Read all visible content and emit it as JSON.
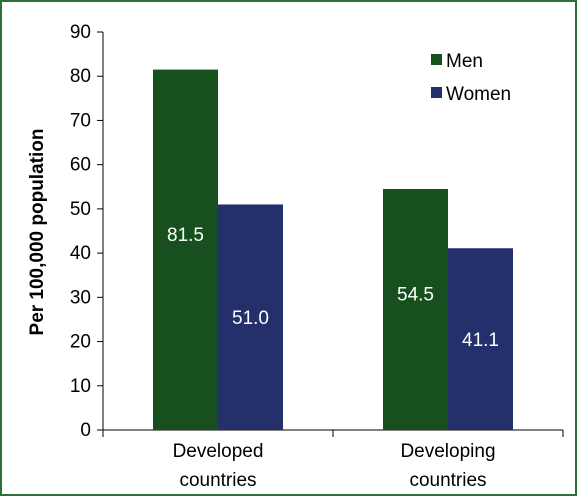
{
  "chart_data": {
    "type": "bar",
    "categories": [
      [
        "Developed",
        "countries"
      ],
      [
        "Developing",
        "countries"
      ]
    ],
    "series": [
      {
        "name": "Men",
        "values": [
          81.5,
          54.5
        ],
        "labels": [
          "81.5",
          "54.5"
        ],
        "color": "#174f1f"
      },
      {
        "name": "Women",
        "values": [
          51.0,
          41.1
        ],
        "labels": [
          "51.0",
          "41.1"
        ],
        "color": "#24306b"
      }
    ],
    "ylabel": "Per 100,000 population",
    "xlabel": "",
    "ylim": [
      0,
      90
    ],
    "yticks": [
      0,
      10,
      20,
      30,
      40,
      50,
      60,
      70,
      80,
      90
    ],
    "grid": false,
    "legend": "top-right",
    "frame_color": "#2f6f3a"
  }
}
